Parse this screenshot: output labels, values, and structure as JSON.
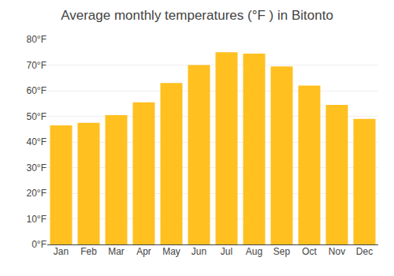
{
  "chart_data": {
    "type": "bar",
    "title": "Average monthly temperatures (°F ) in Bitonto",
    "categories": [
      "Jan",
      "Feb",
      "Mar",
      "Apr",
      "May",
      "Jun",
      "Jul",
      "Aug",
      "Sep",
      "Oct",
      "Nov",
      "Dec"
    ],
    "values": [
      46.5,
      47.5,
      50.5,
      55.5,
      63.0,
      70.0,
      75.0,
      74.5,
      69.5,
      62.0,
      54.5,
      49.0
    ],
    "color": "#FFC020",
    "ylim": [
      0,
      80
    ],
    "yticks": [
      {
        "value": 0,
        "label": "0°F"
      },
      {
        "value": 10,
        "label": "10°F"
      },
      {
        "value": 20,
        "label": "20°F"
      },
      {
        "value": 30,
        "label": "30°F"
      },
      {
        "value": 40,
        "label": "40°F"
      },
      {
        "value": 50,
        "label": "50°F"
      },
      {
        "value": 60,
        "label": "60°F"
      },
      {
        "value": 70,
        "label": "70°F"
      },
      {
        "value": 80,
        "label": "80°F"
      }
    ],
    "grid": true
  }
}
